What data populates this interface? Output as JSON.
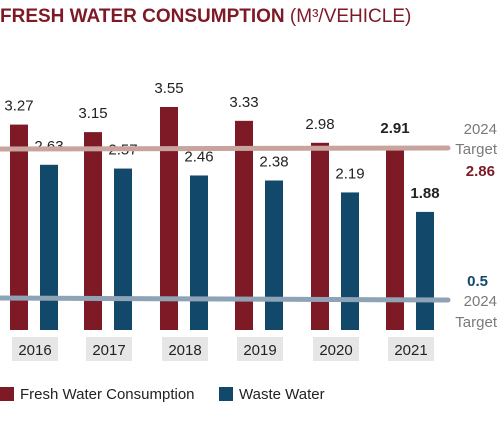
{
  "chart_data": {
    "type": "bar",
    "title": "FRESH WATER CONSUMPTION",
    "title_unit": "(M³/VEHICLE)",
    "categories": [
      "2016",
      "2017",
      "2018",
      "2019",
      "2020",
      "2021"
    ],
    "series": [
      {
        "name": "Fresh Water Consumption",
        "color": "#7d1a26",
        "values": [
          3.27,
          3.15,
          3.55,
          3.33,
          2.98,
          2.91
        ],
        "labels": [
          "3.27",
          "3.15",
          "3.55",
          "3.33",
          "2.98",
          "2.91"
        ]
      },
      {
        "name": "Waste Water",
        "color": "#12496b",
        "values": [
          2.63,
          2.57,
          2.46,
          2.38,
          2.19,
          1.88
        ],
        "labels": [
          "2.63",
          "2.57",
          "2.46",
          "2.38",
          "2.19",
          "1.88"
        ]
      }
    ],
    "targets": [
      {
        "series": "Fresh Water Consumption",
        "value": 2.86,
        "value_label": "2.86",
        "label_line1": "2024",
        "label_line2": "Target",
        "line_color": "#c9a39d",
        "value_color": "#7d1a26"
      },
      {
        "series": "Waste Water",
        "value": 0.5,
        "value_label": "0.5",
        "label_line1": "2024",
        "label_line2": "Target",
        "line_color": "#8ea3b5",
        "value_color": "#12496b"
      }
    ],
    "ylim": [
      0,
      3.55
    ],
    "grid": false,
    "legend_position": "bottom-left",
    "colors": {
      "title": "#7d1a26",
      "text": "#222222",
      "target_text": "#7a7a7a",
      "category_bg": "#e6e6e6"
    }
  }
}
